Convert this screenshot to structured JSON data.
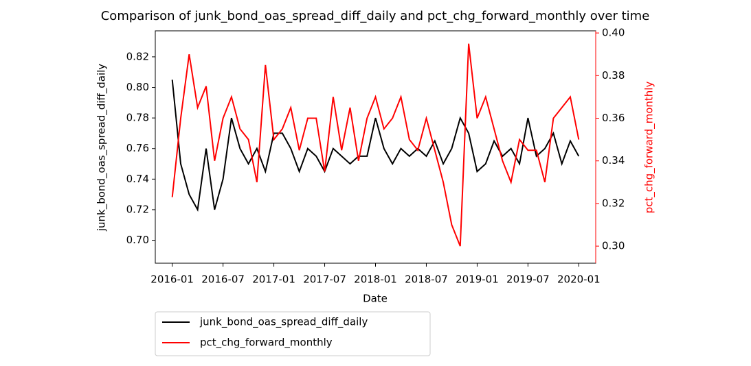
{
  "chart_data": {
    "type": "line",
    "title": "Comparison of junk_bond_oas_spread_diff_daily and pct_chg_forward_monthly over time",
    "xlabel": "Date",
    "ylabel": "junk_bond_oas_spread_diff_daily",
    "y2label": "pct_chg_forward_monthly",
    "x": [
      "2016-01",
      "2016-02",
      "2016-03",
      "2016-04",
      "2016-05",
      "2016-06",
      "2016-07",
      "2016-08",
      "2016-09",
      "2016-10",
      "2016-11",
      "2016-12",
      "2017-01",
      "2017-02",
      "2017-03",
      "2017-04",
      "2017-05",
      "2017-06",
      "2017-07",
      "2017-08",
      "2017-09",
      "2017-10",
      "2017-11",
      "2017-12",
      "2018-01",
      "2018-02",
      "2018-03",
      "2018-04",
      "2018-05",
      "2018-06",
      "2018-07",
      "2018-08",
      "2018-09",
      "2018-10",
      "2018-11",
      "2018-12",
      "2019-01",
      "2019-02",
      "2019-03",
      "2019-04",
      "2019-05",
      "2019-06",
      "2019-07",
      "2019-08",
      "2019-09",
      "2019-10",
      "2019-11",
      "2019-12",
      "2020-01"
    ],
    "series": [
      {
        "name": "junk_bond_oas_spread_diff_daily",
        "color": "#000000",
        "axis": "y",
        "values": [
          0.805,
          0.75,
          0.73,
          0.72,
          0.76,
          0.72,
          0.74,
          0.78,
          0.76,
          0.75,
          0.76,
          0.745,
          0.77,
          0.77,
          0.76,
          0.745,
          0.76,
          0.755,
          0.745,
          0.76,
          0.755,
          0.75,
          0.755,
          0.755,
          0.78,
          0.76,
          0.75,
          0.76,
          0.755,
          0.76,
          0.755,
          0.765,
          0.75,
          0.76,
          0.78,
          0.77,
          0.745,
          0.75,
          0.765,
          0.755,
          0.76,
          0.75,
          0.78,
          0.755,
          0.76,
          0.77,
          0.75,
          0.765,
          0.755
        ]
      },
      {
        "name": "pct_chg_forward_monthly",
        "color": "#ff0000",
        "axis": "y2",
        "values": [
          0.323,
          0.36,
          0.39,
          0.365,
          0.375,
          0.34,
          0.36,
          0.37,
          0.355,
          0.35,
          0.33,
          0.385,
          0.35,
          0.355,
          0.365,
          0.345,
          0.36,
          0.36,
          0.335,
          0.37,
          0.345,
          0.365,
          0.34,
          0.36,
          0.37,
          0.355,
          0.36,
          0.37,
          0.35,
          0.345,
          0.36,
          0.345,
          0.33,
          0.31,
          0.3,
          0.395,
          0.36,
          0.37,
          0.355,
          0.34,
          0.33,
          0.35,
          0.345,
          0.345,
          0.33,
          0.36,
          0.365,
          0.37,
          0.35
        ]
      }
    ],
    "xlim": [
      "2015-11",
      "2020-03"
    ],
    "xticks": [
      "2016-01",
      "2016-07",
      "2017-01",
      "2017-07",
      "2018-01",
      "2018-07",
      "2019-01",
      "2019-07",
      "2020-01"
    ],
    "ylim": [
      0.685,
      0.837
    ],
    "yticks": [
      {
        "value": 0.7,
        "label": "0.70"
      },
      0.72,
      0.74,
      0.76,
      0.78,
      {
        "value": 0.8,
        "label": "0.80"
      },
      0.82
    ],
    "y2lim": [
      0.292,
      0.401
    ],
    "y2ticks": [
      {
        "value": 0.3,
        "label": "0.30"
      },
      0.32,
      0.34,
      0.36,
      0.38,
      {
        "value": 0.4,
        "label": "0.40"
      }
    ],
    "y2color": "#ff0000",
    "legend": "below"
  }
}
